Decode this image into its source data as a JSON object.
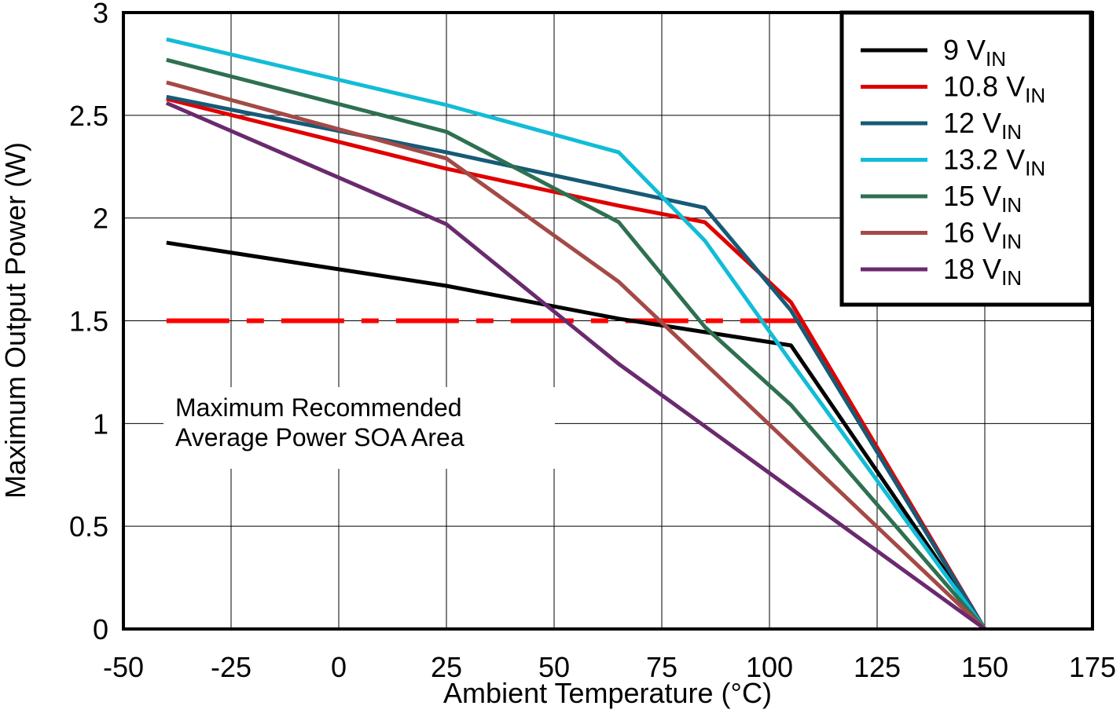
{
  "chart_data": {
    "type": "line",
    "xlabel": "Ambient Temperature (°C)",
    "ylabel": "Maximum Output Power (W)",
    "xlim": [
      -50,
      175
    ],
    "ylim": [
      0,
      3
    ],
    "xticks": [
      -50,
      -25,
      0,
      25,
      50,
      75,
      100,
      125,
      150,
      175
    ],
    "yticks": [
      0,
      0.5,
      1,
      1.5,
      2,
      2.5,
      3
    ],
    "grid": true,
    "legend": "upper right",
    "series": [
      {
        "name": "9 V",
        "subscript": "IN",
        "color": "#000000",
        "x": [
          -40,
          25,
          65,
          105,
          150
        ],
        "values": [
          1.88,
          1.67,
          1.51,
          1.38,
          0
        ]
      },
      {
        "name": "10.8 V",
        "subscript": "IN",
        "color": "#e00000",
        "x": [
          -40,
          25,
          65,
          85,
          105,
          150
        ],
        "values": [
          2.58,
          2.24,
          2.06,
          1.98,
          1.59,
          0
        ]
      },
      {
        "name": "12 V",
        "subscript": "IN",
        "color": "#175a76",
        "x": [
          -40,
          25,
          65,
          85,
          105,
          150
        ],
        "values": [
          2.59,
          2.32,
          2.14,
          2.05,
          1.55,
          0
        ]
      },
      {
        "name": "13.2 V",
        "subscript": "IN",
        "color": "#12bcd6",
        "x": [
          -40,
          25,
          65,
          85,
          105,
          150
        ],
        "values": [
          2.87,
          2.55,
          2.32,
          1.89,
          1.3,
          0
        ]
      },
      {
        "name": "15 V",
        "subscript": "IN",
        "color": "#2e7050",
        "x": [
          -40,
          25,
          65,
          85,
          105,
          150
        ],
        "values": [
          2.77,
          2.42,
          1.98,
          1.47,
          1.09,
          0
        ]
      },
      {
        "name": "16 V",
        "subscript": "IN",
        "color": "#a44a46",
        "x": [
          -40,
          25,
          65,
          150
        ],
        "values": [
          2.66,
          2.29,
          1.69,
          0
        ]
      },
      {
        "name": "18 V",
        "subscript": "IN",
        "color": "#6a2a6e",
        "x": [
          -40,
          25,
          65,
          150
        ],
        "values": [
          2.56,
          1.97,
          1.29,
          0
        ]
      }
    ],
    "reference_line": {
      "y": 1.5,
      "x": [
        -40,
        108
      ],
      "color": "#ff0000"
    },
    "annotation": [
      "Maximum Recommended",
      "Average Power SOA Area"
    ]
  }
}
